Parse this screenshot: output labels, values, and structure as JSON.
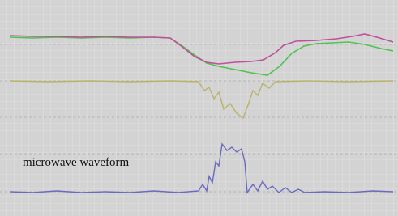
{
  "label": "microwave waveform"
}
